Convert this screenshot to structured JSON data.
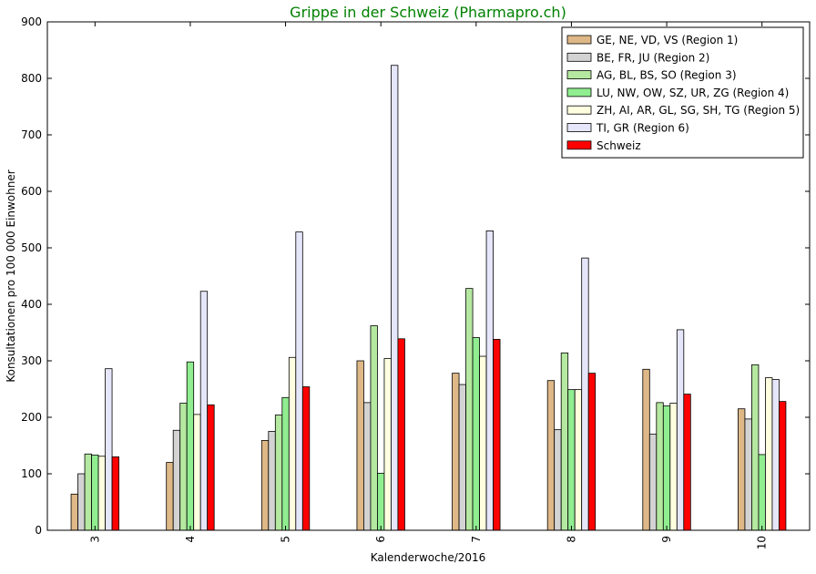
{
  "chart_data": {
    "type": "bar",
    "title": "Grippe in der Schweiz (Pharmapro.ch)",
    "title_color": "#008000",
    "xlabel": "Kalenderwoche/2016",
    "ylabel": "Konsultationen pro 100 000 Einwohner",
    "ylim": [
      0,
      900
    ],
    "yticks": [
      "0",
      "100",
      "200",
      "300",
      "400",
      "500",
      "600",
      "700",
      "800",
      "900"
    ],
    "grid": false,
    "legend_position": "top-right",
    "categories": [
      "3",
      "4",
      "5",
      "6",
      "7",
      "8",
      "9",
      "10"
    ],
    "series": [
      {
        "name": "GE, NE, VD, VS (Region 1)",
        "color": "#deb887",
        "values": [
          64,
          120,
          159,
          300,
          278,
          265,
          285,
          215
        ]
      },
      {
        "name": "BE, FR, JU (Region 2)",
        "color": "#d3d3d3",
        "values": [
          100,
          177,
          175,
          226,
          258,
          178,
          170,
          197
        ]
      },
      {
        "name": "AG, BL, BS, SO (Region 3)",
        "color": "#b5e8a0",
        "values": [
          135,
          225,
          204,
          362,
          428,
          314,
          226,
          293
        ]
      },
      {
        "name": "LU, NW, OW, SZ, UR, ZG (Region 4)",
        "color": "#90ee90",
        "values": [
          133,
          298,
          235,
          101,
          341,
          249,
          220,
          134
        ]
      },
      {
        "name": "ZH, AI, AR, GL, SG, SH, TG (Region 5)",
        "color": "#ffffe0",
        "values": [
          131,
          205,
          306,
          304,
          308,
          249,
          225,
          270
        ]
      },
      {
        "name": "TI, GR (Region 6)",
        "color": "#e6e6fa",
        "values": [
          286,
          423,
          528,
          823,
          530,
          482,
          355,
          267
        ]
      },
      {
        "name": "Schweiz",
        "color": "#ff0000",
        "values": [
          130,
          222,
          254,
          339,
          338,
          278,
          241,
          228
        ]
      }
    ]
  }
}
